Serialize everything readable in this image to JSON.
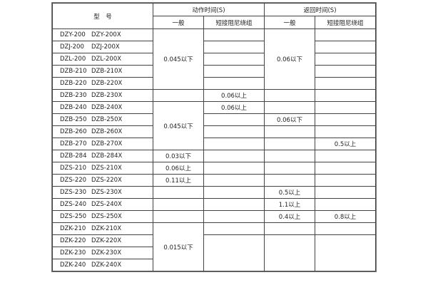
{
  "header": {
    "model": "型　号",
    "action_time": "动作时间(S)",
    "return_time": "返回时间(S)",
    "general": "一般",
    "short_damping": "短接阻尼绕组"
  },
  "rows": [
    {
      "a": "DZY-200",
      "b": "DZY-200X",
      "c1": "0.045以下",
      "c2": "",
      "c3": "0.06以下",
      "c4": ""
    },
    {
      "a": "DZJ-200",
      "b": "DZJ-200X",
      "c2": "",
      "c4": ""
    },
    {
      "a": "DZL-200",
      "b": "DZL-200X",
      "c2": "",
      "c4": ""
    },
    {
      "a": "DZB-210",
      "b": "DZB-210X",
      "c2": "",
      "c4": ""
    },
    {
      "a": "DZB-220",
      "b": "DZB-220X",
      "c2": "",
      "c4": ""
    },
    {
      "a": "DZB-230",
      "b": "DZB-230X",
      "c1": "",
      "c2": "0.06以上",
      "c3": "",
      "c4": ""
    },
    {
      "a": "DZB-240",
      "b": "DZB-240X",
      "c1": "0.045以下",
      "c2": "0.06以上",
      "c3": "",
      "c4": ""
    },
    {
      "a": "DZB-250",
      "b": "DZB-250X",
      "c2": "",
      "c3": "0.06以下",
      "c4": ""
    },
    {
      "a": "DZB-260",
      "b": "DZB-260X",
      "c2": "",
      "c3": "",
      "c4": ""
    },
    {
      "a": "DZB-270",
      "b": "DZB-270X",
      "c2": "",
      "c3": "",
      "c4": "0.5以上"
    },
    {
      "a": "DZB-284",
      "b": "DZB-284X",
      "c1": "0.03以下",
      "c2": "",
      "c3": "",
      "c4": ""
    },
    {
      "a": "DZS-210",
      "b": "DZS-210X",
      "c1": "0.06以上",
      "c2": "",
      "c3": "",
      "c4": ""
    },
    {
      "a": "DZS-220",
      "b": "DZS-220X",
      "c1": "0.11以上",
      "c2": "",
      "c3": "",
      "c4": ""
    },
    {
      "a": "DZS-230",
      "b": "DZS-230X",
      "c1": "",
      "c2": "",
      "c3": "0.5以上",
      "c4": ""
    },
    {
      "a": "DZS-240",
      "b": "DZS-240X",
      "c1": "",
      "c2": "",
      "c3": "1.1以上",
      "c4": ""
    },
    {
      "a": "DZS-250",
      "b": "DZS-250X",
      "c1": "",
      "c2": "",
      "c3": "0.4以上",
      "c4": "0.8以上"
    },
    {
      "a": "DZK-210",
      "b": "DZK-210X",
      "c1": "0.015以下",
      "c2": "",
      "c3": "",
      "c4": ""
    },
    {
      "a": "DZK-220",
      "b": "DZK-220X",
      "c2": "",
      "c3": "",
      "c4": ""
    },
    {
      "a": "DZK-230",
      "b": "DZK-230X"
    },
    {
      "a": "DZK-240",
      "b": "DZK-240X"
    }
  ]
}
